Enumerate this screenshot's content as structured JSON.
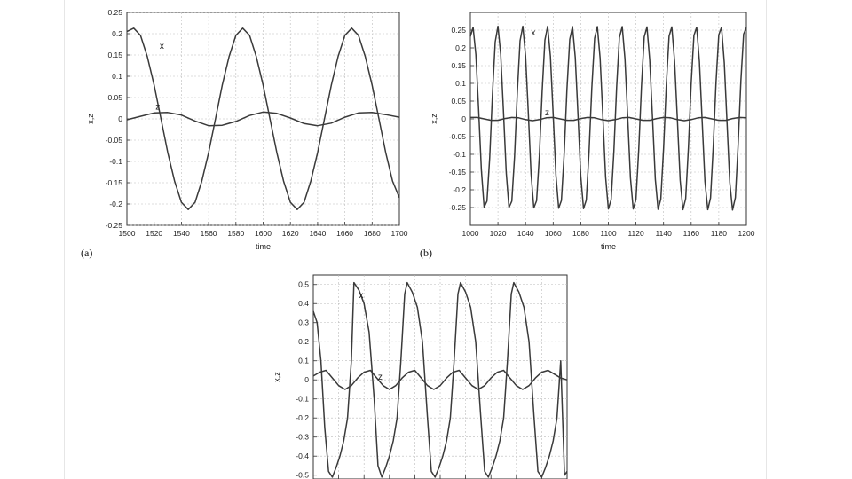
{
  "chart_data": [
    {
      "panel_label": "(a)",
      "type": "line",
      "xlabel": "time",
      "ylabel": "x,z",
      "xlim": [
        1500,
        1700
      ],
      "ylim": [
        -0.25,
        0.25
      ],
      "xticks": [
        "1500",
        "1520",
        "1540",
        "1560",
        "1580",
        "1600",
        "1620",
        "1640",
        "1660",
        "1680",
        "1700"
      ],
      "yticks": [
        "0.25",
        "0.2",
        "0.15",
        "0.1",
        "0.05",
        "0",
        "-0.05",
        "-0.1",
        "-0.15",
        "-0.2",
        "-0.25"
      ],
      "grid": true,
      "series": [
        {
          "name": "x",
          "x": [
            1500,
            1505,
            1510,
            1515,
            1520,
            1525,
            1530,
            1535,
            1540,
            1545,
            1550,
            1555,
            1560,
            1565,
            1570,
            1575,
            1580,
            1585,
            1590,
            1595,
            1600,
            1605,
            1610,
            1615,
            1620,
            1625,
            1630,
            1635,
            1640,
            1645,
            1650,
            1655,
            1660,
            1665,
            1670,
            1675,
            1680,
            1685,
            1690,
            1695,
            1700
          ],
          "y": [
            0.205,
            0.213,
            0.196,
            0.146,
            0.079,
            0.0,
            -0.079,
            -0.146,
            -0.196,
            -0.213,
            -0.196,
            -0.146,
            -0.079,
            0.0,
            0.079,
            0.146,
            0.196,
            0.213,
            0.196,
            0.146,
            0.079,
            0.0,
            -0.079,
            -0.146,
            -0.196,
            -0.213,
            -0.196,
            -0.146,
            -0.079,
            0.0,
            0.079,
            0.146,
            0.196,
            0.213,
            0.196,
            0.146,
            0.079,
            0.0,
            -0.079,
            -0.146,
            -0.185
          ]
        },
        {
          "name": "z",
          "x": [
            1500,
            1510,
            1520,
            1530,
            1540,
            1550,
            1560,
            1570,
            1580,
            1590,
            1600,
            1610,
            1620,
            1630,
            1640,
            1650,
            1660,
            1670,
            1680,
            1690,
            1700
          ],
          "y": [
            -0.002,
            0.006,
            0.014,
            0.015,
            0.009,
            -0.005,
            -0.016,
            -0.015,
            -0.006,
            0.008,
            0.016,
            0.013,
            0.002,
            -0.011,
            -0.016,
            -0.01,
            0.004,
            0.014,
            0.015,
            0.01,
            0.004
          ]
        }
      ]
    },
    {
      "panel_label": "(b)",
      "type": "line",
      "xlabel": "time",
      "ylabel": "x,z",
      "xlim": [
        1000,
        1200
      ],
      "ylim": [
        -0.3,
        0.3
      ],
      "xticks": [
        "1000",
        "1020",
        "1040",
        "1060",
        "1080",
        "1100",
        "1120",
        "1140",
        "1160",
        "1180",
        "1200"
      ],
      "yticks": [
        "0.25",
        "0.2",
        "0.15",
        "0.1",
        "0.05",
        "0",
        "-0.05",
        "-0.1",
        "-0.15",
        "-0.2",
        "-0.25"
      ],
      "grid": true,
      "series": [
        {
          "name": "x",
          "x": [
            1000,
            1002,
            1004,
            1006,
            1008,
            1010,
            1012,
            1014,
            1016,
            1018,
            1020,
            1022,
            1024,
            1026,
            1028,
            1030,
            1032,
            1034,
            1036,
            1038,
            1040,
            1042,
            1044,
            1046,
            1048,
            1050,
            1052,
            1054,
            1056,
            1058,
            1060,
            1062,
            1064,
            1066,
            1068,
            1070,
            1072,
            1074,
            1076,
            1078,
            1080,
            1082,
            1084,
            1086,
            1088,
            1090,
            1092,
            1094,
            1096,
            1098,
            1100,
            1102,
            1104,
            1106,
            1108,
            1110,
            1112,
            1114,
            1116,
            1118,
            1120,
            1122,
            1124,
            1126,
            1128,
            1130,
            1132,
            1134,
            1136,
            1138,
            1140,
            1142,
            1144,
            1146,
            1148,
            1150,
            1152,
            1154,
            1156,
            1158,
            1160,
            1162,
            1164,
            1166,
            1168,
            1170,
            1172,
            1174,
            1176,
            1178,
            1180,
            1182,
            1184,
            1186,
            1188,
            1190,
            1192,
            1194,
            1196,
            1198,
            1200
          ],
          "y": [
            0.232,
            0.258,
            0.181,
            0.027,
            -0.144,
            -0.249,
            -0.232,
            -0.109,
            0.07,
            0.217,
            0.261,
            0.181,
            0.02,
            -0.151,
            -0.25,
            -0.232,
            -0.106,
            0.074,
            0.22,
            0.261,
            0.178,
            0.017,
            -0.155,
            -0.251,
            -0.231,
            -0.102,
            0.078,
            0.222,
            0.261,
            0.176,
            0.013,
            -0.158,
            -0.252,
            -0.23,
            -0.099,
            0.082,
            0.224,
            0.26,
            0.173,
            0.01,
            -0.161,
            -0.253,
            -0.229,
            -0.095,
            0.085,
            0.227,
            0.26,
            0.171,
            0.006,
            -0.164,
            -0.254,
            -0.228,
            -0.092,
            0.089,
            0.229,
            0.26,
            0.169,
            0.003,
            -0.167,
            -0.254,
            -0.227,
            -0.088,
            0.092,
            0.231,
            0.259,
            0.166,
            -0.001,
            -0.17,
            -0.255,
            -0.226,
            -0.084,
            0.096,
            0.233,
            0.259,
            0.163,
            -0.004,
            -0.173,
            -0.256,
            -0.225,
            -0.081,
            0.1,
            0.235,
            0.258,
            0.161,
            -0.008,
            -0.176,
            -0.256,
            -0.223,
            -0.077,
            0.103,
            0.237,
            0.258,
            0.158,
            -0.011,
            -0.179,
            -0.257,
            -0.222,
            -0.074,
            0.107,
            0.239,
            0.257
          ]
        },
        {
          "name": "z",
          "x": [
            1000,
            1005,
            1010,
            1015,
            1020,
            1025,
            1030,
            1035,
            1040,
            1045,
            1050,
            1055,
            1060,
            1065,
            1070,
            1075,
            1080,
            1085,
            1090,
            1095,
            1100,
            1105,
            1110,
            1115,
            1120,
            1125,
            1130,
            1135,
            1140,
            1145,
            1150,
            1155,
            1160,
            1165,
            1170,
            1175,
            1180,
            1185,
            1190,
            1195,
            1200
          ],
          "y": [
            0.004,
            0.004,
            0.0,
            -0.004,
            -0.004,
            0.001,
            0.004,
            0.003,
            -0.002,
            -0.005,
            -0.002,
            0.003,
            0.004,
            0.0,
            -0.004,
            -0.004,
            0.001,
            0.004,
            0.003,
            -0.002,
            -0.005,
            -0.002,
            0.003,
            0.004,
            0.0,
            -0.004,
            -0.004,
            0.001,
            0.004,
            0.003,
            -0.002,
            -0.005,
            -0.002,
            0.003,
            0.004,
            0.0,
            -0.004,
            -0.004,
            0.001,
            0.004,
            0.003
          ]
        }
      ]
    },
    {
      "panel_label": "",
      "type": "line",
      "xlabel": "",
      "ylabel": "x,z",
      "xlim": [
        0,
        200
      ],
      "ylim": [
        -0.52,
        0.55
      ],
      "xticks": [
        "",
        "",
        "",
        "",
        "",
        "",
        "",
        "",
        "",
        "",
        ""
      ],
      "yticks": [
        "0.5",
        "0.4",
        "0.3",
        "0.2",
        "0.1",
        "0",
        "-0.1",
        "-0.2",
        "-0.3",
        "-0.4",
        "-0.5"
      ],
      "grid": true,
      "series": [
        {
          "name": "x",
          "x": [
            0,
            3,
            6,
            9,
            12,
            15,
            18,
            21,
            24,
            27,
            30,
            32,
            36,
            40,
            44,
            48,
            51,
            54,
            57,
            60,
            63,
            66,
            69,
            72,
            74,
            78,
            82,
            86,
            90,
            93,
            96,
            99,
            102,
            105,
            108,
            111,
            114,
            116,
            120,
            124,
            128,
            132,
            135,
            138,
            141,
            144,
            147,
            150,
            153,
            156,
            158,
            162,
            166,
            170,
            174,
            177,
            180,
            183,
            186,
            189,
            192,
            195,
            198,
            200
          ],
          "y": [
            0.36,
            0.3,
            0.1,
            -0.25,
            -0.48,
            -0.51,
            -0.46,
            -0.4,
            -0.32,
            -0.2,
            0.1,
            0.51,
            0.47,
            0.4,
            0.25,
            -0.1,
            -0.45,
            -0.51,
            -0.46,
            -0.4,
            -0.32,
            -0.2,
            0.1,
            0.45,
            0.51,
            0.46,
            0.38,
            0.2,
            -0.2,
            -0.48,
            -0.51,
            -0.46,
            -0.4,
            -0.32,
            -0.2,
            0.1,
            0.45,
            0.51,
            0.46,
            0.38,
            0.2,
            -0.2,
            -0.48,
            -0.51,
            -0.46,
            -0.4,
            -0.32,
            -0.2,
            0.1,
            0.45,
            0.51,
            0.46,
            0.38,
            0.2,
            -0.2,
            -0.48,
            -0.51,
            -0.46,
            -0.4,
            -0.32,
            -0.2,
            0.1,
            -0.5,
            -0.48
          ]
        },
        {
          "name": "z",
          "x": [
            0,
            5,
            10,
            15,
            20,
            25,
            30,
            35,
            40,
            45,
            50,
            55,
            60,
            65,
            70,
            75,
            80,
            85,
            90,
            95,
            100,
            105,
            110,
            115,
            120,
            125,
            130,
            135,
            140,
            145,
            150,
            155,
            160,
            165,
            170,
            175,
            180,
            185,
            190,
            195,
            200
          ],
          "y": [
            0.02,
            0.04,
            0.05,
            0.01,
            -0.03,
            -0.05,
            -0.03,
            0.01,
            0.04,
            0.05,
            0.01,
            -0.03,
            -0.05,
            -0.03,
            0.01,
            0.04,
            0.05,
            0.01,
            -0.03,
            -0.05,
            -0.03,
            0.01,
            0.04,
            0.05,
            0.01,
            -0.03,
            -0.05,
            -0.03,
            0.01,
            0.04,
            0.05,
            0.01,
            -0.03,
            -0.05,
            -0.03,
            0.01,
            0.04,
            0.05,
            0.03,
            0.01,
            0.0
          ]
        }
      ]
    }
  ]
}
